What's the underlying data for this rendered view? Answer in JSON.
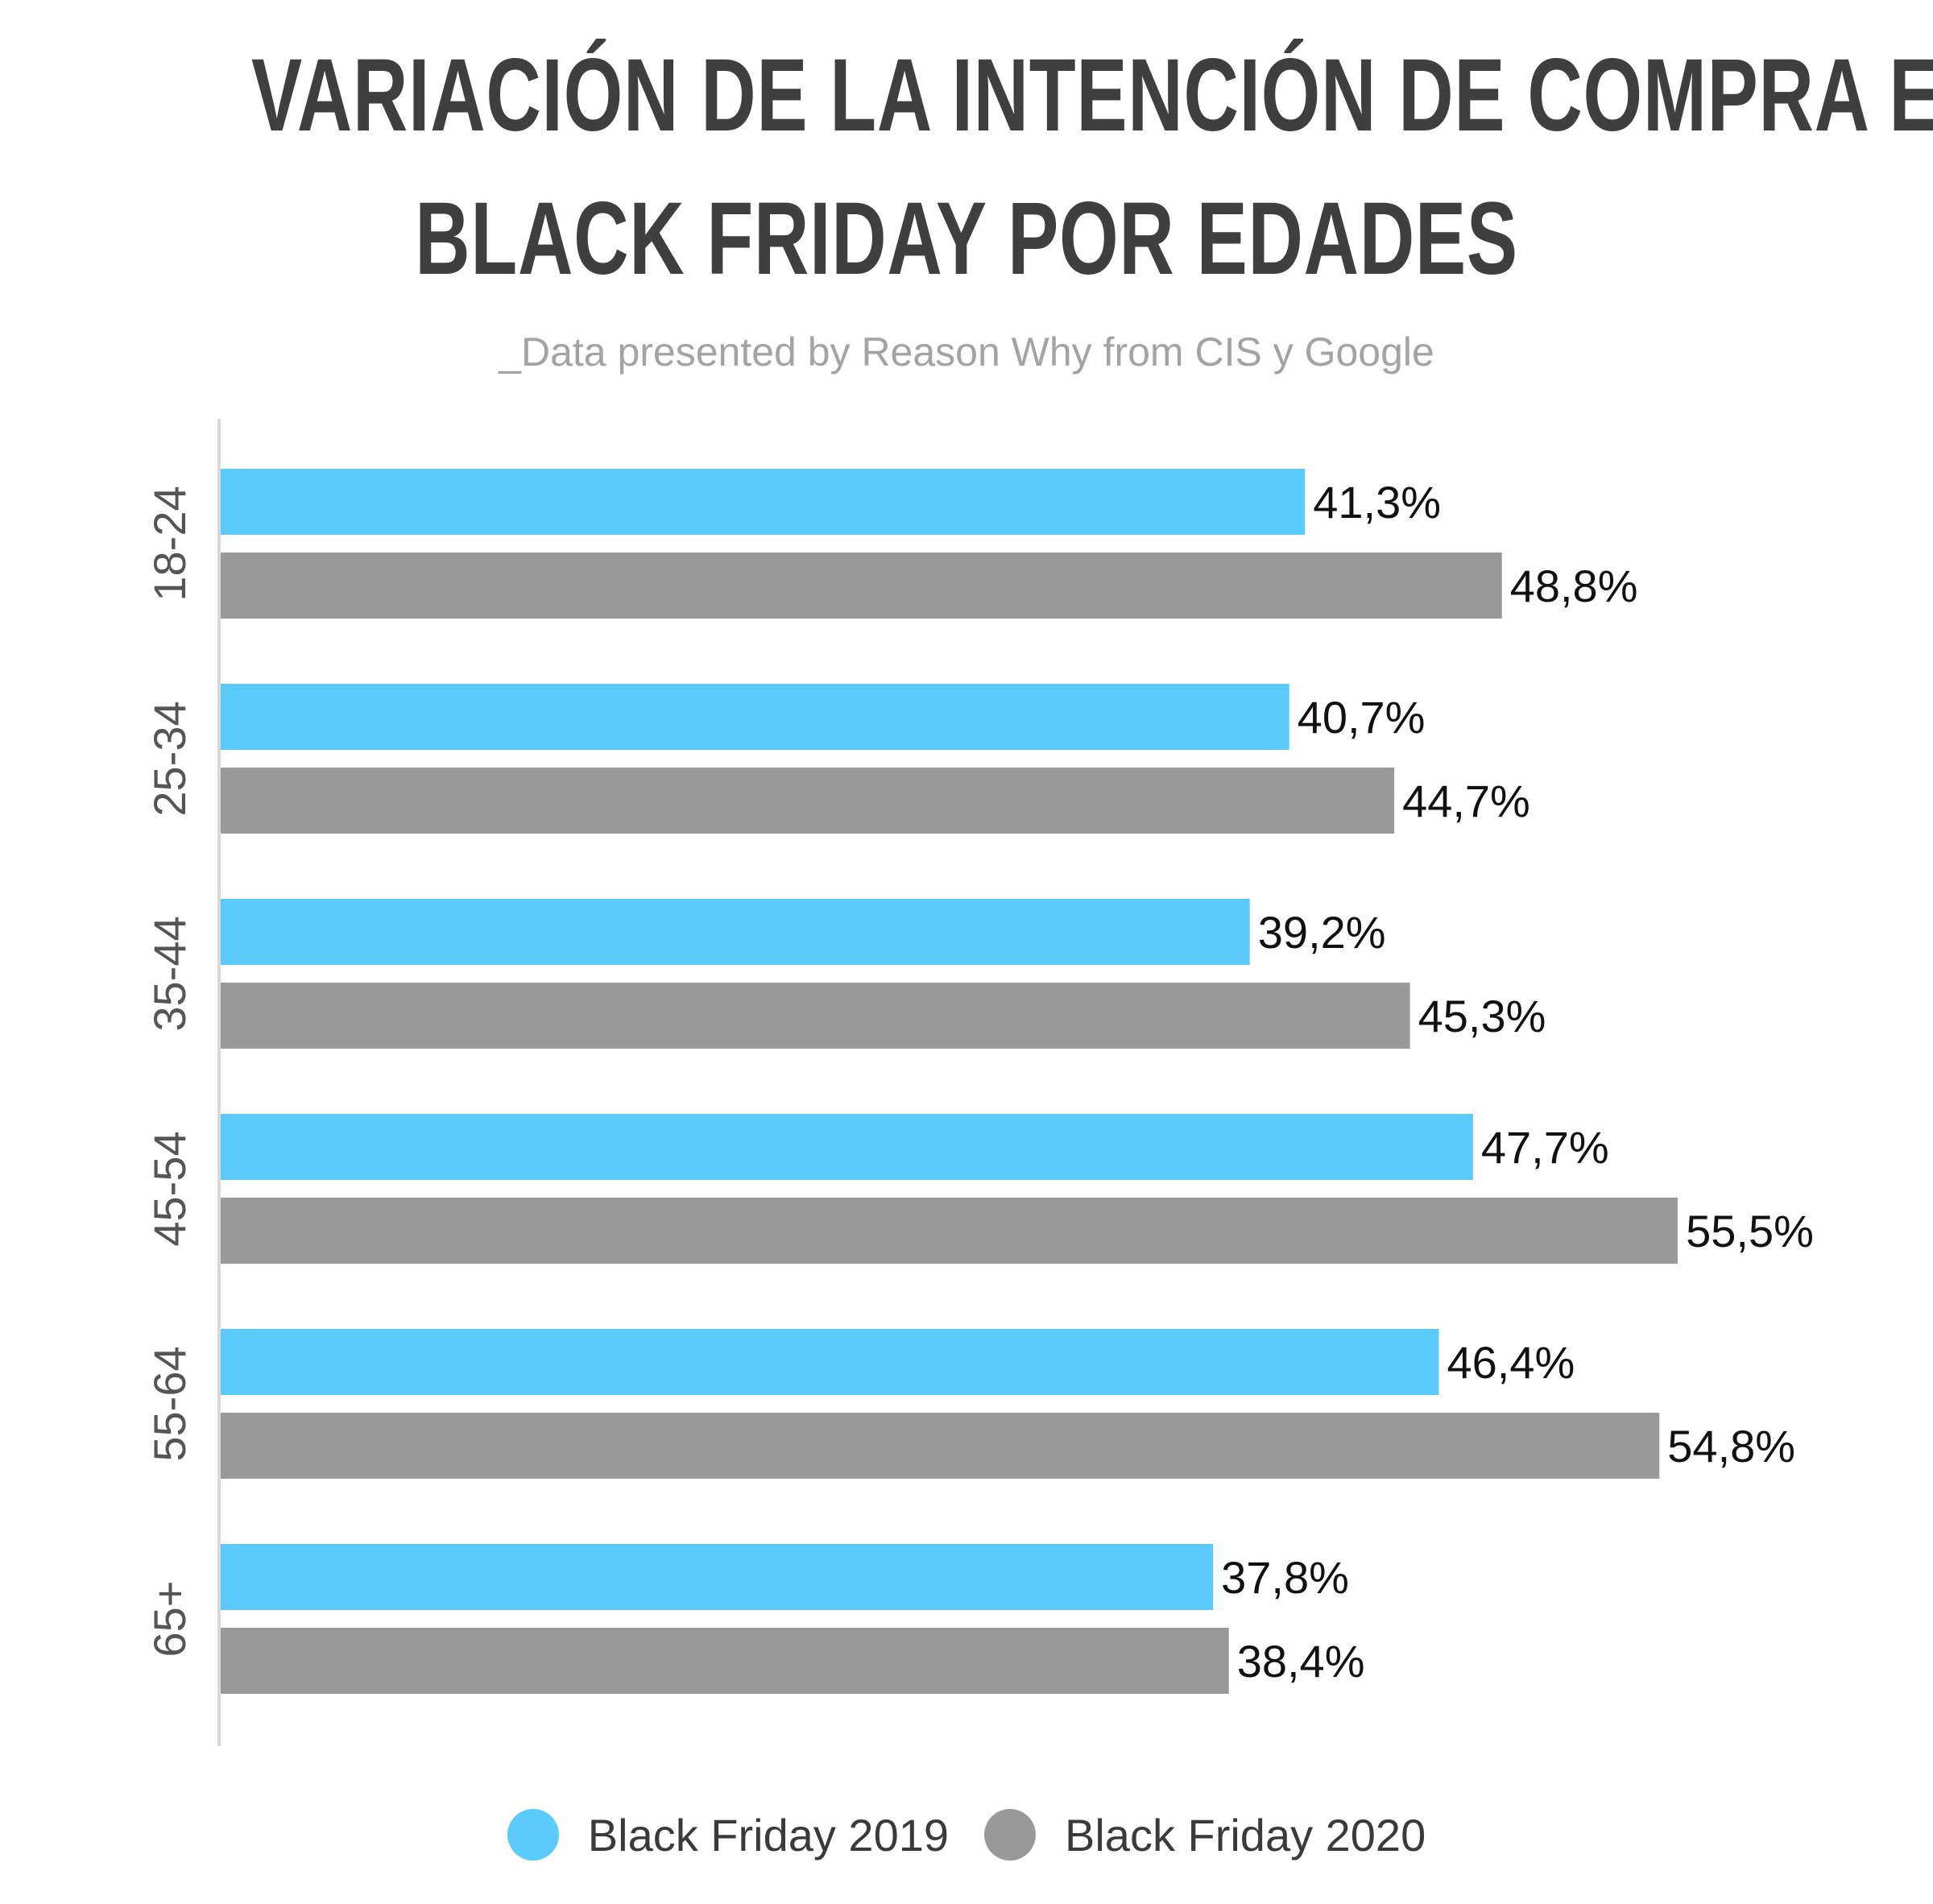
{
  "chart_data": {
    "type": "bar",
    "orientation": "horizontal",
    "title_lines": [
      "VARIACIÓN DE LA INTENCIÓN DE COMPRA EN",
      "BLACK FRIDAY POR EDADES"
    ],
    "subtitle": "_Data presented by Reason Why from CIS y Google",
    "categories": [
      "18-24",
      "25-34",
      "35-44",
      "45-54",
      "55-64",
      "65+"
    ],
    "series": [
      {
        "name": "Black Friday 2019",
        "color": "#5acbfa",
        "values": [
          41.3,
          40.7,
          39.2,
          47.7,
          46.4,
          37.8
        ],
        "labels": [
          "41,3%",
          "40,7%",
          "39,2%",
          "47,7%",
          "46,4%",
          "37,8%"
        ]
      },
      {
        "name": "Black Friday 2020",
        "color": "#999999",
        "values": [
          48.8,
          44.7,
          45.3,
          55.5,
          54.8,
          38.4
        ],
        "labels": [
          "48,8%",
          "44,7%",
          "45,3%",
          "55,5%",
          "54,8%",
          "38,4%"
        ]
      }
    ],
    "xlim": [
      0,
      57
    ],
    "grid": false,
    "legend_position": "bottom-center"
  }
}
